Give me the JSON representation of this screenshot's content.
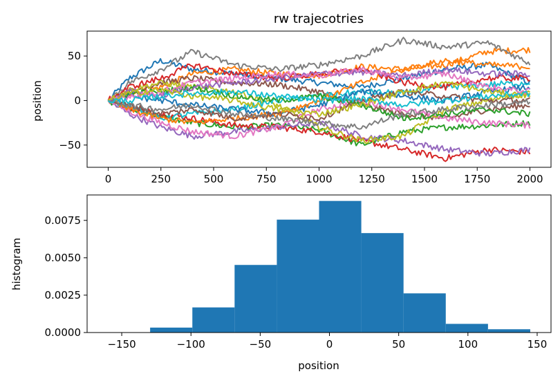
{
  "chart_data": [
    {
      "type": "line",
      "title": "rw trajecotries",
      "xlabel": "",
      "ylabel": "position",
      "xlim": [
        -100,
        2100
      ],
      "ylim": [
        -75,
        78
      ],
      "xticks": [
        0,
        250,
        500,
        750,
        1000,
        1250,
        1500,
        1750,
        2000
      ],
      "yticks": [
        -50,
        0,
        50
      ],
      "grid": false,
      "n_steps": 2000,
      "colors": [
        "#1f77b4",
        "#ff7f0e",
        "#2ca02c",
        "#d62728",
        "#9467bd",
        "#8c564b",
        "#e377c2",
        "#7f7f7f",
        "#bcbd22",
        "#17becf"
      ],
      "series": [
        {
          "color": "#1f77b4",
          "x": [
            0,
            100,
            250,
            400,
            600,
            800,
            1000,
            1200,
            1400,
            1600,
            1800,
            2000
          ],
          "y": [
            0,
            25,
            45,
            35,
            30,
            25,
            20,
            15,
            25,
            35,
            40,
            20
          ]
        },
        {
          "color": "#ff7f0e",
          "x": [
            0,
            100,
            250,
            400,
            600,
            800,
            1000,
            1200,
            1400,
            1600,
            1800,
            2000
          ],
          "y": [
            0,
            8,
            15,
            30,
            35,
            30,
            28,
            38,
            35,
            40,
            55,
            57
          ]
        },
        {
          "color": "#2ca02c",
          "x": [
            0,
            100,
            250,
            400,
            600,
            800,
            1000,
            1200,
            1400,
            1600,
            1800,
            2000
          ],
          "y": [
            0,
            -10,
            -18,
            -25,
            -30,
            -28,
            -33,
            -50,
            -35,
            -30,
            -28,
            -25
          ]
        },
        {
          "color": "#d62728",
          "x": [
            0,
            100,
            250,
            400,
            600,
            800,
            1000,
            1200,
            1400,
            1600,
            1800,
            2000
          ],
          "y": [
            0,
            -8,
            -15,
            -20,
            -28,
            -30,
            -35,
            -45,
            -55,
            -65,
            -55,
            -58
          ]
        },
        {
          "color": "#9467bd",
          "x": [
            0,
            100,
            250,
            400,
            600,
            800,
            1000,
            1200,
            1400,
            1600,
            1800,
            2000
          ],
          "y": [
            0,
            -15,
            -30,
            -40,
            -35,
            -30,
            -25,
            -40,
            -45,
            -55,
            -60,
            -55
          ]
        },
        {
          "color": "#8c564b",
          "x": [
            0,
            100,
            250,
            400,
            600,
            800,
            1000,
            1200,
            1400,
            1600,
            1800,
            2000
          ],
          "y": [
            0,
            10,
            20,
            25,
            20,
            18,
            10,
            -5,
            -15,
            -20,
            -10,
            -5
          ]
        },
        {
          "color": "#e377c2",
          "x": [
            0,
            100,
            250,
            400,
            600,
            800,
            1000,
            1200,
            1400,
            1600,
            1800,
            2000
          ],
          "y": [
            0,
            -12,
            -25,
            -35,
            -40,
            -30,
            -10,
            0,
            -10,
            -20,
            -25,
            -28
          ]
        },
        {
          "color": "#7f7f7f",
          "x": [
            0,
            100,
            250,
            400,
            600,
            800,
            1000,
            1200,
            1400,
            1600,
            1800,
            2000
          ],
          "y": [
            0,
            20,
            35,
            55,
            40,
            35,
            40,
            50,
            68,
            60,
            65,
            42
          ]
        },
        {
          "color": "#bcbd22",
          "x": [
            0,
            100,
            250,
            400,
            600,
            800,
            1000,
            1200,
            1400,
            1600,
            1800,
            2000
          ],
          "y": [
            0,
            12,
            20,
            15,
            10,
            -5,
            -30,
            -45,
            -40,
            -10,
            0,
            10
          ]
        },
        {
          "color": "#17becf",
          "x": [
            0,
            100,
            250,
            400,
            600,
            800,
            1000,
            1200,
            1400,
            1600,
            1800,
            2000
          ],
          "y": [
            0,
            -5,
            -20,
            -15,
            -10,
            0,
            5,
            10,
            8,
            15,
            18,
            20
          ]
        },
        {
          "color": "#1f77b4",
          "x": [
            0,
            100,
            250,
            400,
            600,
            800,
            1000,
            1200,
            1400,
            1600,
            1800,
            2000
          ],
          "y": [
            0,
            5,
            0,
            -5,
            -10,
            -15,
            -5,
            10,
            5,
            0,
            10,
            15
          ]
        },
        {
          "color": "#ff7f0e",
          "x": [
            0,
            100,
            250,
            400,
            600,
            800,
            1000,
            1200,
            1400,
            1600,
            1800,
            2000
          ],
          "y": [
            0,
            -10,
            -20,
            -25,
            -20,
            -15,
            0,
            20,
            35,
            45,
            40,
            38
          ]
        },
        {
          "color": "#2ca02c",
          "x": [
            0,
            100,
            250,
            400,
            600,
            800,
            1000,
            1200,
            1400,
            1600,
            1800,
            2000
          ],
          "y": [
            0,
            8,
            10,
            15,
            5,
            0,
            5,
            -5,
            -20,
            -15,
            -10,
            -15
          ]
        },
        {
          "color": "#d62728",
          "x": [
            0,
            100,
            250,
            400,
            600,
            800,
            1000,
            1200,
            1400,
            1600,
            1800,
            2000
          ],
          "y": [
            0,
            15,
            25,
            40,
            30,
            25,
            30,
            35,
            20,
            15,
            25,
            25
          ]
        },
        {
          "color": "#9467bd",
          "x": [
            0,
            100,
            250,
            400,
            600,
            800,
            1000,
            1200,
            1400,
            1600,
            1800,
            2000
          ],
          "y": [
            0,
            10,
            5,
            15,
            20,
            25,
            30,
            32,
            28,
            35,
            30,
            30
          ]
        },
        {
          "color": "#8c564b",
          "x": [
            0,
            100,
            250,
            400,
            600,
            800,
            1000,
            1200,
            1400,
            1600,
            1800,
            2000
          ],
          "y": [
            0,
            -5,
            -15,
            -10,
            -20,
            -15,
            -20,
            0,
            10,
            5,
            0,
            0
          ]
        },
        {
          "color": "#e377c2",
          "x": [
            0,
            100,
            250,
            400,
            600,
            800,
            1000,
            1200,
            1400,
            1600,
            1800,
            2000
          ],
          "y": [
            0,
            5,
            10,
            20,
            25,
            30,
            28,
            35,
            25,
            30,
            15,
            10
          ]
        },
        {
          "color": "#7f7f7f",
          "x": [
            0,
            100,
            250,
            400,
            600,
            800,
            1000,
            1200,
            1400,
            1600,
            1800,
            2000
          ],
          "y": [
            0,
            -5,
            -10,
            -5,
            -15,
            -20,
            -25,
            -30,
            -15,
            -10,
            -5,
            -2
          ]
        },
        {
          "color": "#bcbd22",
          "x": [
            0,
            100,
            250,
            400,
            600,
            800,
            1000,
            1200,
            1400,
            1600,
            1800,
            2000
          ],
          "y": [
            0,
            8,
            12,
            5,
            0,
            -10,
            -15,
            -5,
            10,
            20,
            10,
            5
          ]
        },
        {
          "color": "#17becf",
          "x": [
            0,
            100,
            250,
            400,
            600,
            800,
            1000,
            1200,
            1400,
            1600,
            1800,
            2000
          ],
          "y": [
            0,
            0,
            5,
            8,
            10,
            5,
            0,
            2,
            -5,
            0,
            5,
            8
          ]
        }
      ]
    },
    {
      "type": "bar",
      "title": "",
      "xlabel": "position",
      "ylabel": "histogram",
      "xlim": [
        -175,
        160
      ],
      "ylim": [
        0,
        0.0092
      ],
      "xticks": [
        -150,
        -100,
        -50,
        0,
        50,
        100,
        150
      ],
      "yticks": [
        0.0,
        0.0025,
        0.005,
        0.0075
      ],
      "ytick_labels": [
        "0.0000",
        "0.0025",
        "0.0050",
        "0.0075"
      ],
      "grid": false,
      "color": "#1f77b4",
      "bin_edges": [
        -160,
        -129.5,
        -99,
        -68.5,
        -38,
        -7.5,
        23,
        53.5,
        84,
        114.5,
        145
      ],
      "values": [
        2e-05,
        0.00033,
        0.00168,
        0.00452,
        0.00755,
        0.0088,
        0.00665,
        0.00262,
        0.00058,
        0.00022
      ]
    }
  ]
}
